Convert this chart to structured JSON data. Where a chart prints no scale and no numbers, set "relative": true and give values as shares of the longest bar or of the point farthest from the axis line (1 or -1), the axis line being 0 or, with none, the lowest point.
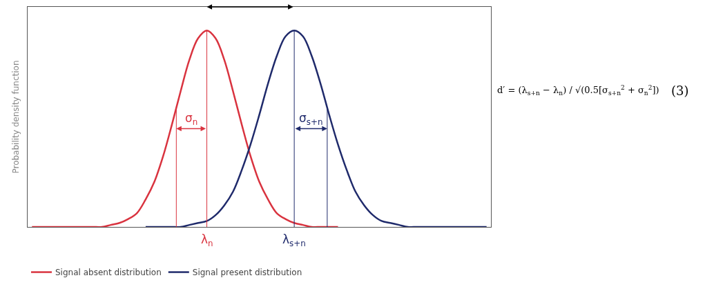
{
  "chart_data": {
    "type": "line",
    "relative": true,
    "ylabel": "Probability density function",
    "categories": [
      null,
      null,
      null,
      null,
      null,
      null,
      null,
      null,
      null,
      null,
      null,
      null,
      null,
      null,
      null,
      null,
      null,
      null,
      null,
      null,
      null,
      null,
      null,
      null,
      null,
      null,
      null,
      null,
      null,
      null,
      null,
      null,
      null,
      null,
      null,
      null,
      null,
      null,
      null,
      null,
      null,
      null,
      null,
      null,
      null,
      null,
      null,
      null,
      null,
      null,
      null,
      null,
      null
    ],
    "series": [
      {
        "name": "Signal absent distribution",
        "color": "#d9333f",
        "values": [
          0,
          0,
          0,
          0,
          0,
          0,
          0,
          0,
          0,
          0.01,
          0.02,
          0.04,
          0.07,
          0.14,
          0.23,
          0.36,
          0.52,
          0.69,
          0.85,
          0.96,
          1,
          0.96,
          0.85,
          0.69,
          0.52,
          0.36,
          0.23,
          0.14,
          0.07,
          0.04,
          0.02,
          0.01,
          0,
          0,
          0,
          0,
          null,
          null,
          null,
          null,
          null,
          null,
          null,
          null,
          null,
          null,
          null,
          null,
          null,
          null,
          null,
          null,
          null
        ]
      },
      {
        "name": "Signal present distribution",
        "color": "#1f2a6b",
        "values": [
          null,
          null,
          null,
          null,
          null,
          null,
          null,
          null,
          null,
          null,
          null,
          null,
          null,
          0,
          0,
          0,
          0,
          0,
          0.01,
          0.02,
          0.03,
          0.06,
          0.11,
          0.18,
          0.29,
          0.42,
          0.57,
          0.73,
          0.87,
          0.97,
          1,
          0.97,
          0.87,
          0.73,
          0.57,
          0.42,
          0.29,
          0.18,
          0.11,
          0.06,
          0.03,
          0.02,
          0.01,
          0,
          0,
          0,
          0,
          0,
          0,
          0,
          0,
          0,
          0
        ]
      }
    ],
    "annotations": [
      "λ$_{n}$",
      "λ$_{s+n}$",
      "σ$_{n}$",
      "σ$_{s+n}$",
      "d′ = (λ$_{s+n}$ − λ$_{n}$) / √(0.5[σ$_{s+n}$$^{2}$ + σ$_{n}$$^{2}$])",
      "(3)"
    ],
    "legend": "bottom left",
    "marker": "none",
    "line_style": "solid"
  }
}
